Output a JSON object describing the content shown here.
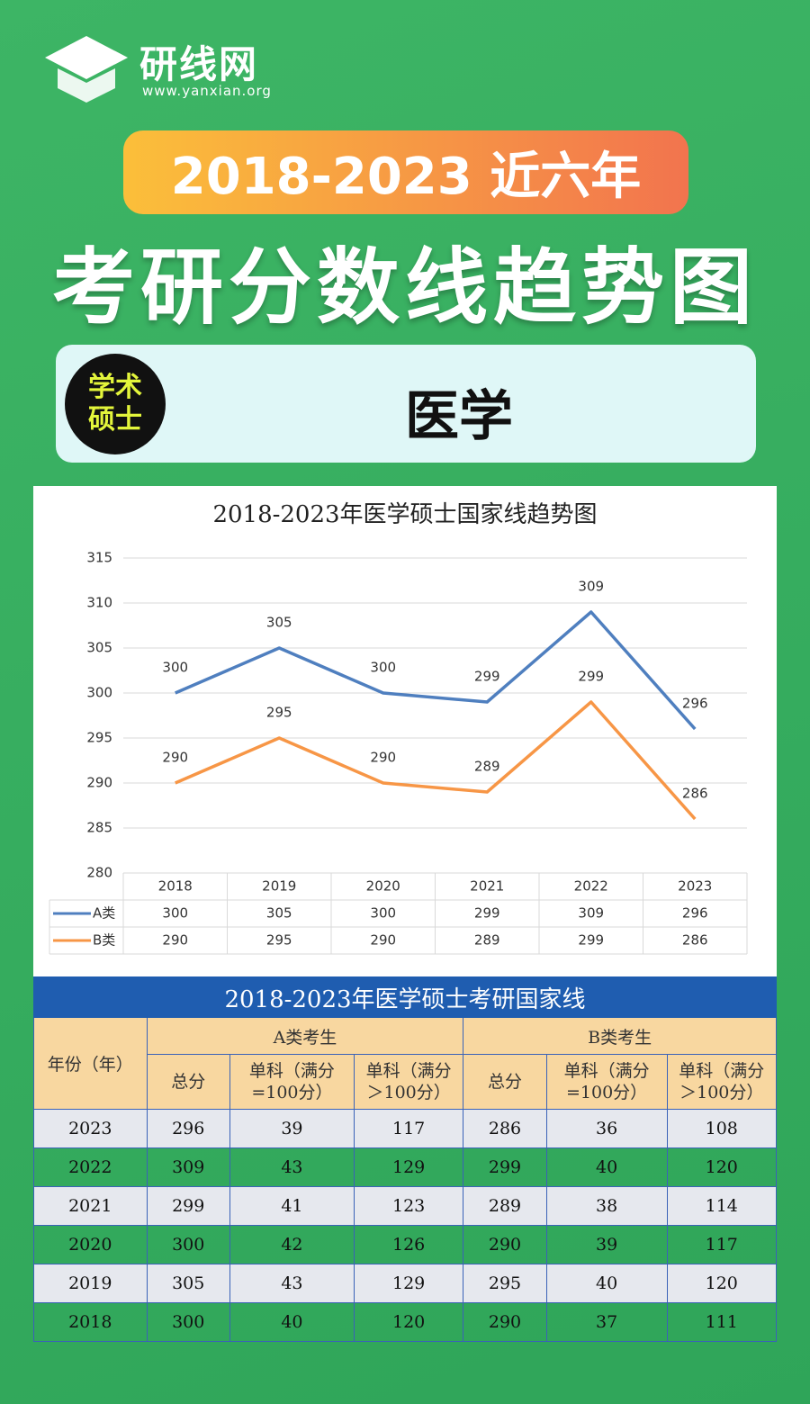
{
  "header": {
    "brand": "研线网",
    "site": "www.yanxian.org",
    "banner": "2018-2023 近六年",
    "headline": "考研分数线趋势图",
    "badge": "学术硕士",
    "subject": "医学"
  },
  "chart_data": {
    "type": "line",
    "title": "2018-2023年医学硕士国家线趋势图",
    "categories": [
      "2018",
      "2019",
      "2020",
      "2021",
      "2022",
      "2023"
    ],
    "series": [
      {
        "name": "A类",
        "color": "#4f7fbf",
        "values": [
          300,
          305,
          300,
          299,
          309,
          296
        ]
      },
      {
        "name": "B类",
        "color": "#f79646",
        "values": [
          290,
          295,
          290,
          289,
          299,
          286
        ]
      }
    ],
    "ylim": [
      280,
      315
    ],
    "yticks": [
      280,
      285,
      290,
      295,
      300,
      305,
      310,
      315
    ],
    "grid": true,
    "data_table": true,
    "data_labels": true
  },
  "table": {
    "title": "2018-2023年医学硕士考研国家线",
    "year_header": "年份（年）",
    "groups": [
      "A类考生",
      "B类考生"
    ],
    "subheaders": [
      "总分",
      "单科（满分=100分）",
      "单科（满分＞100分）",
      "总分",
      "单科（满分=100分）",
      "单科（满分＞100分）"
    ],
    "rows": [
      [
        "2023",
        296,
        39,
        117,
        286,
        36,
        108
      ],
      [
        "2022",
        309,
        43,
        129,
        299,
        40,
        120
      ],
      [
        "2021",
        299,
        41,
        123,
        289,
        38,
        114
      ],
      [
        "2020",
        300,
        42,
        126,
        290,
        39,
        117
      ],
      [
        "2019",
        305,
        43,
        129,
        295,
        40,
        120
      ],
      [
        "2018",
        300,
        40,
        120,
        290,
        37,
        111
      ]
    ]
  }
}
